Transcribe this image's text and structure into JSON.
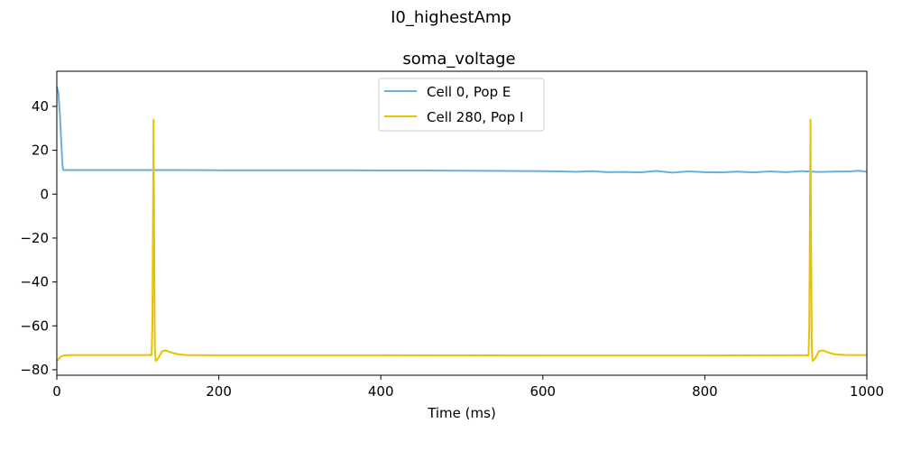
{
  "figure": {
    "suptitle": "I0_highestAmp"
  },
  "chart_data": {
    "type": "line",
    "title": "soma_voltage",
    "xlabel": "Time (ms)",
    "ylabel": "",
    "xlim": [
      0,
      1000
    ],
    "ylim": [
      -82.5,
      56
    ],
    "xticks": [
      0,
      200,
      400,
      600,
      800,
      1000
    ],
    "yticks": [
      40,
      20,
      0,
      -20,
      -40,
      -60,
      -80
    ],
    "xtick_labels": [
      "0",
      "200",
      "400",
      "600",
      "800",
      "1000"
    ],
    "ytick_labels": [
      "40",
      "20",
      "0",
      "−20",
      "−40",
      "−60",
      "−80"
    ],
    "grid": false,
    "legend_position": "top-center",
    "series": [
      {
        "name": "Cell 0, Pop E",
        "color": "#6baed6",
        "x": [
          0,
          2,
          4,
          6,
          7,
          8,
          10,
          50,
          100,
          150,
          200,
          250,
          300,
          350,
          400,
          450,
          500,
          550,
          600,
          620,
          640,
          660,
          680,
          700,
          720,
          740,
          760,
          780,
          800,
          820,
          840,
          860,
          880,
          900,
          920,
          940,
          960,
          980,
          990,
          1000
        ],
        "y": [
          49,
          46,
          35,
          20,
          13,
          11,
          11,
          11,
          11,
          11,
          10.9,
          10.9,
          10.9,
          10.9,
          10.8,
          10.8,
          10.7,
          10.6,
          10.5,
          10.4,
          10.2,
          10.5,
          10.0,
          10.1,
          9.9,
          10.6,
          9.8,
          10.4,
          10.0,
          9.9,
          10.3,
          9.9,
          10.4,
          10.0,
          10.5,
          10.1,
          10.3,
          10.4,
          10.7,
          10.2
        ]
      },
      {
        "name": "Cell 280, Pop I",
        "color": "#e6c200",
        "x": [
          0,
          5,
          10,
          20,
          60,
          100,
          117,
          118,
          119.5,
          120,
          121,
          122,
          125,
          130,
          135,
          140,
          150,
          160,
          200,
          400,
          600,
          800,
          928,
          929,
          930.5,
          931,
          932,
          933,
          936,
          941,
          946,
          951,
          961,
          975,
          1000
        ],
        "y": [
          -76,
          -74,
          -73.4,
          -73.3,
          -73.3,
          -73.3,
          -73.3,
          -60,
          34,
          -10,
          -70,
          -76,
          -75,
          -71.5,
          -71.2,
          -72,
          -73,
          -73.3,
          -73.4,
          -73.4,
          -73.5,
          -73.5,
          -73.4,
          -60,
          34,
          -10,
          -70,
          -76,
          -75,
          -71.5,
          -71.2,
          -72,
          -73,
          -73.3,
          -73.3
        ]
      }
    ]
  }
}
